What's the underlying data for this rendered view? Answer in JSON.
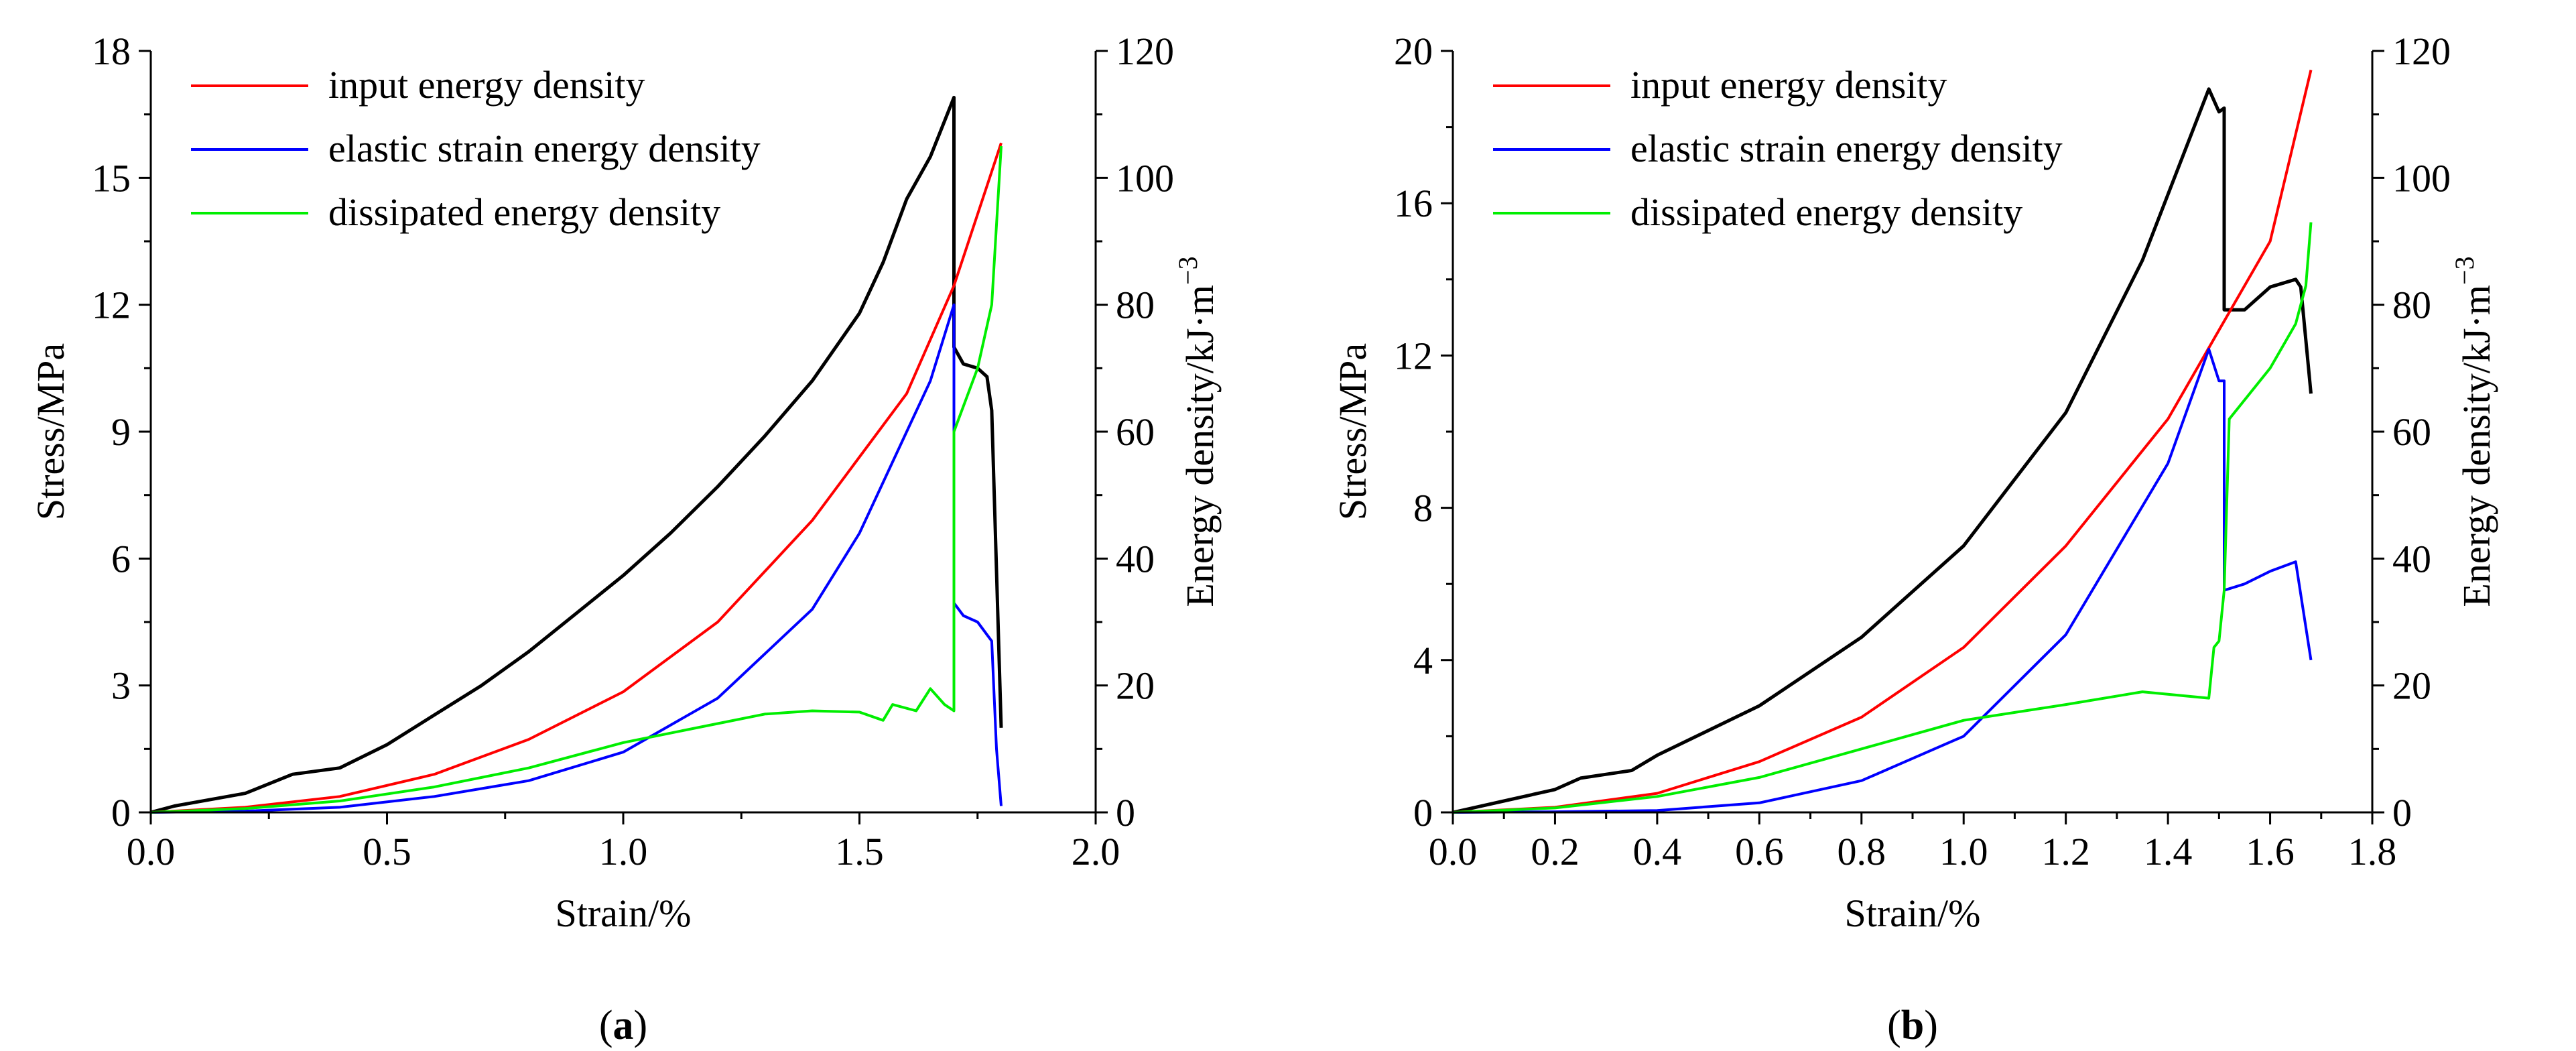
{
  "chart_data": [
    {
      "type": "line",
      "panel_label": "a",
      "xlabel": "Strain/%",
      "ylabel_left": "Stress/MPa",
      "ylabel_right": "Energy density/kJ·m",
      "ylabel_right_sup": "−3",
      "xlim": [
        0,
        2.0
      ],
      "ylim_left": [
        0,
        18
      ],
      "ylim_right": [
        0,
        120
      ],
      "xticks": [
        "0.0",
        "0.5",
        "1.0",
        "1.5",
        "2.0"
      ],
      "xtick_values": [
        0,
        0.5,
        1.0,
        1.5,
        2.0
      ],
      "yticks_left": [
        "0",
        "3",
        "6",
        "9",
        "12",
        "15",
        "18"
      ],
      "yticks_left_values": [
        0,
        3,
        6,
        9,
        12,
        15,
        18
      ],
      "yticks_right": [
        "0",
        "20",
        "40",
        "60",
        "80",
        "100",
        "120"
      ],
      "yticks_right_values": [
        0,
        20,
        40,
        60,
        80,
        100,
        120
      ],
      "legend": [
        "input energy density",
        "elastic strain energy density",
        "dissipated energy density"
      ],
      "legend_position": "top-left",
      "series": [
        {
          "name": "stress",
          "axis": "left",
          "color": "#000000",
          "points": [
            [
              0,
              0
            ],
            [
              0.05,
              0.15
            ],
            [
              0.1,
              0.25
            ],
            [
              0.2,
              0.45
            ],
            [
              0.3,
              0.9
            ],
            [
              0.4,
              1.05
            ],
            [
              0.5,
              1.6
            ],
            [
              0.6,
              2.3
            ],
            [
              0.7,
              3.0
            ],
            [
              0.8,
              3.8
            ],
            [
              0.9,
              4.7
            ],
            [
              1.0,
              5.6
            ],
            [
              1.1,
              6.6
            ],
            [
              1.2,
              7.7
            ],
            [
              1.3,
              8.9
            ],
            [
              1.4,
              10.2
            ],
            [
              1.5,
              11.8
            ],
            [
              1.55,
              13.0
            ],
            [
              1.6,
              14.5
            ],
            [
              1.65,
              15.5
            ],
            [
              1.7,
              16.9
            ],
            [
              1.7,
              11.0
            ],
            [
              1.72,
              10.6
            ],
            [
              1.75,
              10.5
            ],
            [
              1.77,
              10.3
            ],
            [
              1.78,
              9.5
            ],
            [
              1.8,
              2.0
            ]
          ]
        },
        {
          "name": "input energy density",
          "axis": "right",
          "color": "#ff0000",
          "points": [
            [
              0,
              0
            ],
            [
              0.2,
              0.8
            ],
            [
              0.4,
              2.5
            ],
            [
              0.6,
              6.0
            ],
            [
              0.8,
              11.5
            ],
            [
              1.0,
              19.0
            ],
            [
              1.2,
              30.0
            ],
            [
              1.4,
              46.0
            ],
            [
              1.6,
              66.0
            ],
            [
              1.7,
              83.0
            ],
            [
              1.8,
              105.5
            ]
          ]
        },
        {
          "name": "elastic strain energy density",
          "axis": "right",
          "color": "#0000ff",
          "points": [
            [
              0,
              0
            ],
            [
              0.2,
              0.2
            ],
            [
              0.4,
              0.8
            ],
            [
              0.6,
              2.5
            ],
            [
              0.8,
              5.0
            ],
            [
              1.0,
              9.5
            ],
            [
              1.2,
              18.0
            ],
            [
              1.4,
              32.0
            ],
            [
              1.5,
              44.0
            ],
            [
              1.6,
              60.0
            ],
            [
              1.65,
              68.0
            ],
            [
              1.7,
              80.0
            ],
            [
              1.7,
              33.0
            ],
            [
              1.72,
              31.0
            ],
            [
              1.75,
              30.0
            ],
            [
              1.78,
              27.0
            ],
            [
              1.79,
              10.0
            ],
            [
              1.8,
              1.0
            ]
          ]
        },
        {
          "name": "dissipated energy density",
          "axis": "right",
          "color": "#00ee00",
          "points": [
            [
              0,
              0
            ],
            [
              0.2,
              0.6
            ],
            [
              0.4,
              1.8
            ],
            [
              0.6,
              4.0
            ],
            [
              0.8,
              7.0
            ],
            [
              1.0,
              11.0
            ],
            [
              1.2,
              14.0
            ],
            [
              1.3,
              15.5
            ],
            [
              1.4,
              16.0
            ],
            [
              1.5,
              15.8
            ],
            [
              1.55,
              14.5
            ],
            [
              1.57,
              17.0
            ],
            [
              1.62,
              16.0
            ],
            [
              1.65,
              19.5
            ],
            [
              1.68,
              17.0
            ],
            [
              1.7,
              16.0
            ],
            [
              1.7,
              60.0
            ],
            [
              1.75,
              70.0
            ],
            [
              1.78,
              80.0
            ],
            [
              1.8,
              105.0
            ]
          ]
        }
      ]
    },
    {
      "type": "line",
      "panel_label": "b",
      "xlabel": "Strain/%",
      "ylabel_left": "Stress/MPa",
      "ylabel_right": "Energy density/kJ·m",
      "ylabel_right_sup": "−3",
      "xlim": [
        0,
        1.8
      ],
      "ylim_left": [
        0,
        20
      ],
      "ylim_right": [
        0,
        120
      ],
      "xticks": [
        "0.0",
        "0.2",
        "0.4",
        "0.6",
        "0.8",
        "1.0",
        "1.2",
        "1.4",
        "1.6",
        "1.8"
      ],
      "xtick_values": [
        0,
        0.2,
        0.4,
        0.6,
        0.8,
        1.0,
        1.2,
        1.4,
        1.6,
        1.8
      ],
      "yticks_left": [
        "0",
        "4",
        "8",
        "12",
        "16",
        "20"
      ],
      "yticks_left_values": [
        0,
        4,
        8,
        12,
        16,
        20
      ],
      "yticks_right": [
        "0",
        "20",
        "40",
        "60",
        "80",
        "100",
        "120"
      ],
      "yticks_right_values": [
        0,
        20,
        40,
        60,
        80,
        100,
        120
      ],
      "legend": [
        "input energy density",
        "elastic strain energy density",
        "dissipated energy density"
      ],
      "legend_position": "top-left",
      "series": [
        {
          "name": "stress",
          "axis": "left",
          "color": "#000000",
          "points": [
            [
              0,
              0
            ],
            [
              0.1,
              0.3
            ],
            [
              0.2,
              0.6
            ],
            [
              0.25,
              0.9
            ],
            [
              0.3,
              1.0
            ],
            [
              0.35,
              1.1
            ],
            [
              0.4,
              1.5
            ],
            [
              0.6,
              2.8
            ],
            [
              0.8,
              4.6
            ],
            [
              1.0,
              7.0
            ],
            [
              1.2,
              10.5
            ],
            [
              1.35,
              14.5
            ],
            [
              1.48,
              19.0
            ],
            [
              1.5,
              18.4
            ],
            [
              1.51,
              18.5
            ],
            [
              1.51,
              13.2
            ],
            [
              1.55,
              13.2
            ],
            [
              1.6,
              13.8
            ],
            [
              1.65,
              14.0
            ],
            [
              1.66,
              13.8
            ],
            [
              1.68,
              11.0
            ]
          ]
        },
        {
          "name": "input energy density",
          "axis": "right",
          "color": "#ff0000",
          "points": [
            [
              0,
              0
            ],
            [
              0.2,
              0.8
            ],
            [
              0.4,
              3.0
            ],
            [
              0.6,
              8.0
            ],
            [
              0.8,
              15.0
            ],
            [
              1.0,
              26.0
            ],
            [
              1.2,
              42.0
            ],
            [
              1.4,
              62.0
            ],
            [
              1.5,
              76.0
            ],
            [
              1.6,
              90.0
            ],
            [
              1.68,
              117.0
            ]
          ]
        },
        {
          "name": "elastic strain energy density",
          "axis": "right",
          "color": "#0000ff",
          "points": [
            [
              0,
              0
            ],
            [
              0.2,
              0.1
            ],
            [
              0.4,
              0.3
            ],
            [
              0.6,
              1.5
            ],
            [
              0.8,
              5.0
            ],
            [
              1.0,
              12.0
            ],
            [
              1.2,
              28.0
            ],
            [
              1.4,
              55.0
            ],
            [
              1.48,
              73.0
            ],
            [
              1.5,
              68.0
            ],
            [
              1.51,
              68.0
            ],
            [
              1.51,
              35.0
            ],
            [
              1.55,
              36.0
            ],
            [
              1.6,
              38.0
            ],
            [
              1.65,
              39.5
            ],
            [
              1.68,
              24.0
            ]
          ]
        },
        {
          "name": "dissipated energy density",
          "axis": "right",
          "color": "#00ee00",
          "points": [
            [
              0,
              0
            ],
            [
              0.2,
              0.7
            ],
            [
              0.4,
              2.5
            ],
            [
              0.6,
              5.5
            ],
            [
              0.8,
              10.0
            ],
            [
              1.0,
              14.5
            ],
            [
              1.2,
              17.0
            ],
            [
              1.35,
              19.0
            ],
            [
              1.48,
              18.0
            ],
            [
              1.49,
              26.0
            ],
            [
              1.5,
              27.0
            ],
            [
              1.51,
              35.0
            ],
            [
              1.52,
              62.0
            ],
            [
              1.6,
              70.0
            ],
            [
              1.65,
              77.0
            ],
            [
              1.67,
              83.0
            ],
            [
              1.68,
              93.0
            ]
          ]
        }
      ]
    }
  ]
}
